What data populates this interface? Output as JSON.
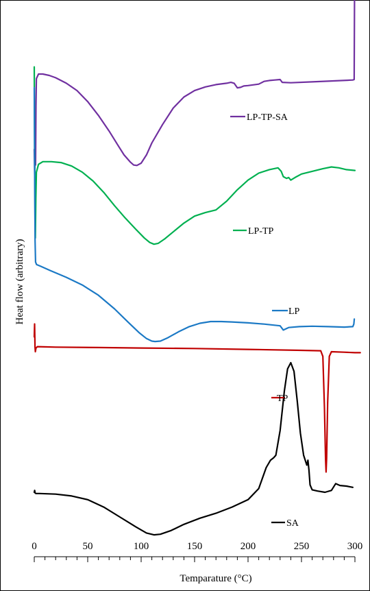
{
  "chart_data": {
    "type": "line",
    "xlabel": "Temparature (°C)",
    "ylabel": "Heat flow (arbitrary)",
    "xlim": [
      0,
      300
    ],
    "x_ticks": [
      "0",
      "50",
      "100",
      "150",
      "200",
      "250",
      "300"
    ],
    "y_scale": "arbitrary, curves vertically offset",
    "legend_placement": "inline, beside each curve",
    "grid": false,
    "series": [
      {
        "name": "LP-TP-SA",
        "color": "#7030A0",
        "points": [
          [
            0,
            0.18
          ],
          [
            0.4,
            -0.1
          ],
          [
            0.8,
            0.1
          ],
          [
            1.2,
            0.01
          ],
          [
            1.6,
            0.65
          ],
          [
            2,
            0.95
          ],
          [
            4,
            1.0
          ],
          [
            8,
            1.0
          ],
          [
            14,
            0.985
          ],
          [
            20,
            0.96
          ],
          [
            30,
            0.9
          ],
          [
            40,
            0.82
          ],
          [
            50,
            0.7
          ],
          [
            60,
            0.55
          ],
          [
            70,
            0.38
          ],
          [
            78,
            0.23
          ],
          [
            84,
            0.12
          ],
          [
            90,
            0.04
          ],
          [
            93,
            0.01
          ],
          [
            96,
            0.005
          ],
          [
            100,
            0.03
          ],
          [
            105,
            0.12
          ],
          [
            110,
            0.25
          ],
          [
            120,
            0.45
          ],
          [
            130,
            0.63
          ],
          [
            140,
            0.75
          ],
          [
            150,
            0.82
          ],
          [
            160,
            0.86
          ],
          [
            170,
            0.885
          ],
          [
            180,
            0.9
          ],
          [
            184,
            0.91
          ],
          [
            187,
            0.9
          ],
          [
            190,
            0.85
          ],
          [
            193,
            0.855
          ],
          [
            196,
            0.87
          ],
          [
            200,
            0.875
          ],
          [
            210,
            0.89
          ],
          [
            215,
            0.92
          ],
          [
            220,
            0.93
          ],
          [
            225,
            0.935
          ],
          [
            230,
            0.94
          ],
          [
            232,
            0.91
          ],
          [
            240,
            0.905
          ],
          [
            260,
            0.915
          ],
          [
            280,
            0.925
          ],
          [
            298,
            0.935
          ],
          [
            299.3,
            0.94
          ],
          [
            299.6,
            1.8
          ]
        ]
      },
      {
        "name": "LP-TP",
        "color": "#00B050",
        "points": [
          [
            0,
            2.05
          ],
          [
            0.4,
            1.0
          ],
          [
            0.7,
            0.3
          ],
          [
            1.0,
            0.1
          ],
          [
            1.5,
            0.55
          ],
          [
            2,
            0.85
          ],
          [
            4,
            0.94
          ],
          [
            8,
            0.97
          ],
          [
            16,
            0.97
          ],
          [
            25,
            0.96
          ],
          [
            35,
            0.92
          ],
          [
            45,
            0.85
          ],
          [
            55,
            0.75
          ],
          [
            65,
            0.62
          ],
          [
            75,
            0.47
          ],
          [
            85,
            0.33
          ],
          [
            95,
            0.2
          ],
          [
            103,
            0.1
          ],
          [
            108,
            0.05
          ],
          [
            112,
            0.03
          ],
          [
            116,
            0.04
          ],
          [
            122,
            0.09
          ],
          [
            130,
            0.17
          ],
          [
            140,
            0.27
          ],
          [
            150,
            0.35
          ],
          [
            160,
            0.39
          ],
          [
            170,
            0.42
          ],
          [
            180,
            0.52
          ],
          [
            190,
            0.65
          ],
          [
            200,
            0.76
          ],
          [
            210,
            0.84
          ],
          [
            220,
            0.88
          ],
          [
            228,
            0.9
          ],
          [
            231,
            0.86
          ],
          [
            233,
            0.8
          ],
          [
            236,
            0.78
          ],
          [
            238,
            0.79
          ],
          [
            240,
            0.76
          ],
          [
            244,
            0.79
          ],
          [
            250,
            0.83
          ],
          [
            260,
            0.86
          ],
          [
            270,
            0.89
          ],
          [
            278,
            0.91
          ],
          [
            285,
            0.9
          ],
          [
            292,
            0.88
          ],
          [
            300,
            0.87
          ]
        ]
      },
      {
        "name": "LP",
        "color": "#1B79C5",
        "points": [
          [
            0,
            3.0
          ],
          [
            0.4,
            2.0
          ],
          [
            0.8,
            1.2
          ],
          [
            1.2,
            0.95
          ],
          [
            2.2,
            0.92
          ],
          [
            6,
            0.9
          ],
          [
            15,
            0.85
          ],
          [
            30,
            0.77
          ],
          [
            45,
            0.68
          ],
          [
            60,
            0.56
          ],
          [
            75,
            0.4
          ],
          [
            88,
            0.24
          ],
          [
            98,
            0.12
          ],
          [
            105,
            0.05
          ],
          [
            110,
            0.02
          ],
          [
            113,
            0.015
          ],
          [
            118,
            0.02
          ],
          [
            125,
            0.06
          ],
          [
            135,
            0.13
          ],
          [
            145,
            0.19
          ],
          [
            155,
            0.23
          ],
          [
            165,
            0.25
          ],
          [
            175,
            0.25
          ],
          [
            185,
            0.245
          ],
          [
            200,
            0.235
          ],
          [
            215,
            0.22
          ],
          [
            230,
            0.2
          ],
          [
            233,
            0.15
          ],
          [
            238,
            0.18
          ],
          [
            248,
            0.19
          ],
          [
            260,
            0.195
          ],
          [
            275,
            0.19
          ],
          [
            290,
            0.185
          ],
          [
            298,
            0.19
          ],
          [
            299,
            0.22
          ],
          [
            299.4,
            0.28
          ]
        ]
      },
      {
        "name": "TP",
        "color": "#C00000",
        "points": [
          [
            0,
            0.16
          ],
          [
            0.3,
            0.3
          ],
          [
            0.7,
            0.05
          ],
          [
            1,
            0.0
          ],
          [
            1.6,
            0.04
          ],
          [
            3,
            0.055
          ],
          [
            20,
            0.05
          ],
          [
            60,
            0.045
          ],
          [
            100,
            0.04
          ],
          [
            150,
            0.035
          ],
          [
            200,
            0.025
          ],
          [
            250,
            0.015
          ],
          [
            268,
            0.01
          ],
          [
            270,
            -0.05
          ],
          [
            271.5,
            -0.6
          ],
          [
            272.5,
            -1.15
          ],
          [
            273,
            -1.3
          ],
          [
            273.5,
            -1.15
          ],
          [
            274.5,
            -0.55
          ],
          [
            276,
            -0.05
          ],
          [
            278,
            0.0
          ],
          [
            290,
            -0.005
          ],
          [
            300,
            -0.01
          ],
          [
            305,
            -0.01
          ]
        ]
      },
      {
        "name": "SA",
        "color": "#000000",
        "points": [
          [
            0,
            0.0
          ],
          [
            0.4,
            0.015
          ],
          [
            0.8,
            -0.005
          ],
          [
            1.5,
            -0.01
          ],
          [
            5,
            -0.01
          ],
          [
            20,
            -0.015
          ],
          [
            35,
            -0.03
          ],
          [
            50,
            -0.06
          ],
          [
            65,
            -0.12
          ],
          [
            80,
            -0.2
          ],
          [
            95,
            -0.28
          ],
          [
            105,
            -0.33
          ],
          [
            112,
            -0.345
          ],
          [
            118,
            -0.34
          ],
          [
            128,
            -0.31
          ],
          [
            140,
            -0.26
          ],
          [
            155,
            -0.21
          ],
          [
            170,
            -0.17
          ],
          [
            185,
            -0.12
          ],
          [
            200,
            -0.06
          ],
          [
            210,
            0.03
          ],
          [
            217,
            0.2
          ],
          [
            221,
            0.26
          ],
          [
            224,
            0.28
          ],
          [
            226,
            0.3
          ],
          [
            230,
            0.5
          ],
          [
            234,
            0.82
          ],
          [
            237,
            1.0
          ],
          [
            240,
            1.05
          ],
          [
            243,
            0.98
          ],
          [
            246,
            0.74
          ],
          [
            249,
            0.48
          ],
          [
            252,
            0.3
          ],
          [
            255,
            0.22
          ],
          [
            256,
            0.26
          ],
          [
            257,
            0.18
          ],
          [
            258,
            0.06
          ],
          [
            260,
            0.02
          ],
          [
            265,
            0.01
          ],
          [
            272,
            0.0
          ],
          [
            278,
            0.015
          ],
          [
            282,
            0.07
          ],
          [
            286,
            0.055
          ],
          [
            292,
            0.05
          ],
          [
            298,
            0.04
          ]
        ]
      }
    ]
  },
  "legend": {
    "LP-TP-SA": "LP-TP-SA",
    "LP-TP": "LP-TP",
    "LP": "LP",
    "TP": "TP",
    "SA": "SA"
  }
}
